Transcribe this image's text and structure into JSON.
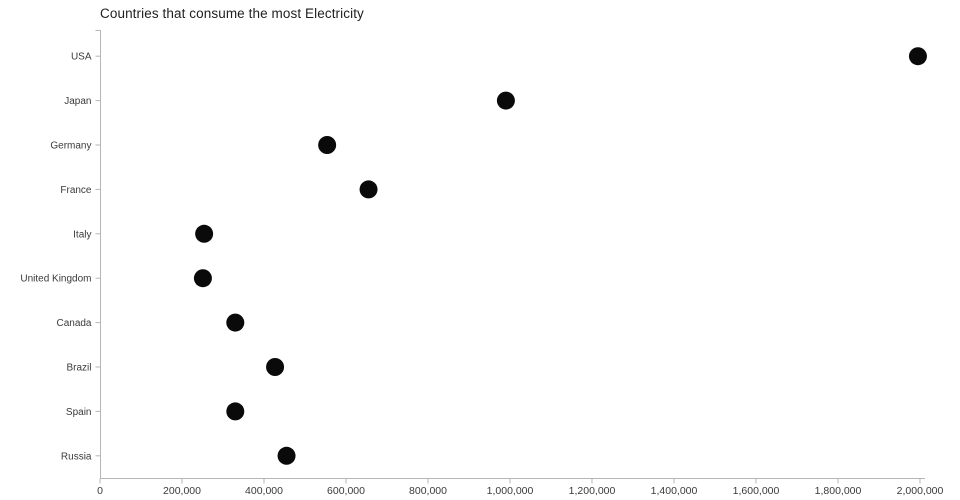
{
  "chart": {
    "title": "Countries that consume the most Electricity"
  },
  "chart_data": {
    "type": "scatter",
    "variant": "horizontal-dot-plot",
    "title": "Countries that consume the most Electricity",
    "categories": [
      "USA",
      "Japan",
      "Germany",
      "France",
      "Italy",
      "United Kingdom",
      "Canada",
      "Brazil",
      "Spain",
      "Russia"
    ],
    "values": [
      1995000,
      990000,
      554000,
      655000,
      254000,
      251000,
      330000,
      427000,
      330000,
      455000
    ],
    "xlabel": "",
    "ylabel": "",
    "xlim": [
      0,
      2000000
    ],
    "x_ticks": [
      0,
      200000,
      400000,
      600000,
      800000,
      1000000,
      1200000,
      1400000,
      1600000,
      1800000,
      2000000
    ],
    "x_tick_labels": [
      "0",
      "200,000",
      "400,000",
      "600,000",
      "800,000",
      "1,000,000",
      "1,200,000",
      "1,400,000",
      "1,600,000",
      "1,800,000",
      "2,000,000"
    ],
    "grid": false,
    "legend": false,
    "marker": {
      "shape": "circle",
      "radius": 9,
      "color": "#0a0a0a"
    }
  },
  "colors": {
    "background": "#ffffff",
    "axis_line": "#b6b6b6",
    "tick_label": "#3a3a3a",
    "title": "#1f1f1f",
    "marker": "#0a0a0a"
  }
}
